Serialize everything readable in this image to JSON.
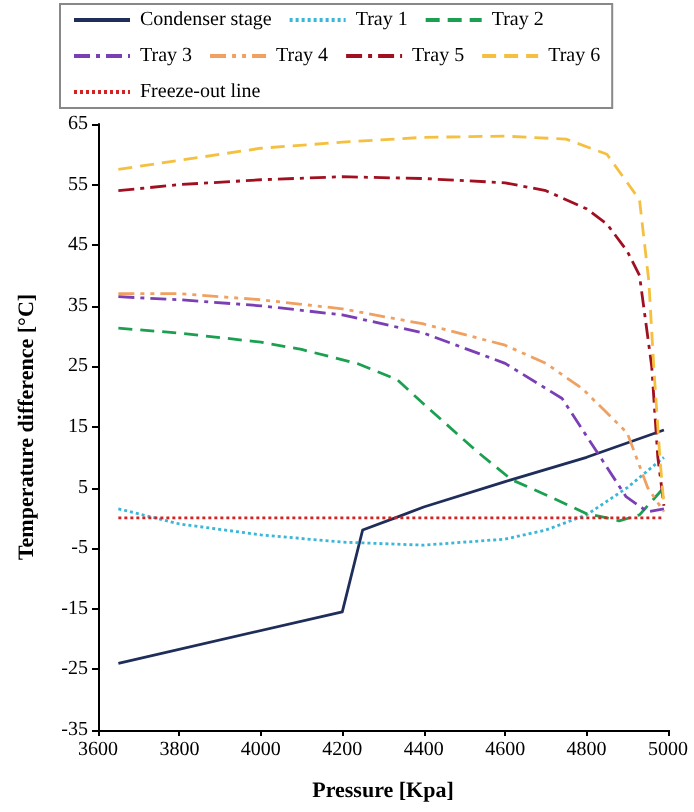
{
  "chart_data": {
    "type": "line",
    "xlabel": "Pressure [Kpa]",
    "ylabel": "Temperature difference [°C]",
    "xlim": [
      3600,
      5000
    ],
    "xticks": [
      3600,
      3800,
      4000,
      4200,
      4400,
      4600,
      4800,
      5000
    ],
    "ylim": [
      -35,
      65
    ],
    "yticks": [
      -35,
      -25,
      -15,
      -5,
      5,
      15,
      25,
      35,
      45,
      55,
      65
    ],
    "grid": false,
    "legend": "top",
    "marker": "none",
    "series": [
      {
        "name": "Condenser stage",
        "color": "#1f2d5a",
        "line_style": "solid",
        "x": [
          3650,
          4200,
          4250,
          4330,
          4400,
          4600,
          4800,
          4990
        ],
        "values": [
          -24,
          -15.5,
          -2,
          0,
          1.8,
          6,
          10,
          14.5
        ]
      },
      {
        "name": "Tray 1",
        "color": "#3ab6d8",
        "line_style": "dotted",
        "x": [
          3650,
          3800,
          4000,
          4200,
          4400,
          4600,
          4700,
          4800,
          4900,
          4990
        ],
        "values": [
          1.5,
          -1,
          -2.8,
          -4,
          -4.5,
          -3.5,
          -2,
          0.5,
          5,
          10
        ]
      },
      {
        "name": "Tray 2",
        "color": "#1aa050",
        "line_style": "dashed",
        "x": [
          3650,
          3800,
          4000,
          4100,
          4240,
          4335,
          4400,
          4530,
          4616,
          4710,
          4800,
          4850,
          4880,
          4930,
          4990
        ],
        "values": [
          31.3,
          30.5,
          29,
          27.8,
          25.4,
          22.8,
          18.8,
          11,
          6.3,
          3.5,
          0.7,
          0,
          -0.5,
          0.5,
          5
        ]
      },
      {
        "name": "Tray 3",
        "color": "#7a3fb5",
        "line_style": "dashdot",
        "x": [
          3650,
          3800,
          4000,
          4200,
          4400,
          4600,
          4740,
          4836,
          4897,
          4950,
          4990
        ],
        "values": [
          36.5,
          36,
          35,
          33.5,
          30.5,
          25.5,
          19.7,
          9.8,
          3.5,
          1,
          1.5
        ]
      },
      {
        "name": "Tray 4",
        "color": "#f0a060",
        "line_style": "dashdotdot",
        "x": [
          3650,
          3800,
          4000,
          4200,
          4400,
          4600,
          4700,
          4790,
          4900,
          4950,
          4990
        ],
        "values": [
          37,
          37,
          36,
          34.5,
          32,
          28.5,
          25.5,
          21.3,
          14,
          5,
          1
        ]
      },
      {
        "name": "Tray 5",
        "color": "#a01020",
        "line_style": "dashdot",
        "x": [
          3650,
          3800,
          4000,
          4200,
          4400,
          4600,
          4700,
          4800,
          4850,
          4900,
          4930,
          4960,
          4975,
          4990
        ],
        "values": [
          54,
          55,
          55.8,
          56.3,
          56,
          55.3,
          54,
          51,
          48.5,
          44,
          40,
          25,
          10,
          2
        ]
      },
      {
        "name": "Tray 6",
        "color": "#f5c040",
        "line_style": "dashed",
        "x": [
          3650,
          3800,
          4000,
          4200,
          4400,
          4600,
          4750,
          4850,
          4930,
          4953,
          4965,
          4980,
          4990
        ],
        "values": [
          57.5,
          59,
          61,
          62,
          62.8,
          63,
          62.5,
          60,
          52.5,
          39,
          25,
          10,
          2
        ]
      },
      {
        "name": "Freeze-out line",
        "color": "#d42020",
        "line_style": "dotted",
        "x": [
          3650,
          4990
        ],
        "values": [
          0,
          0
        ]
      }
    ]
  }
}
